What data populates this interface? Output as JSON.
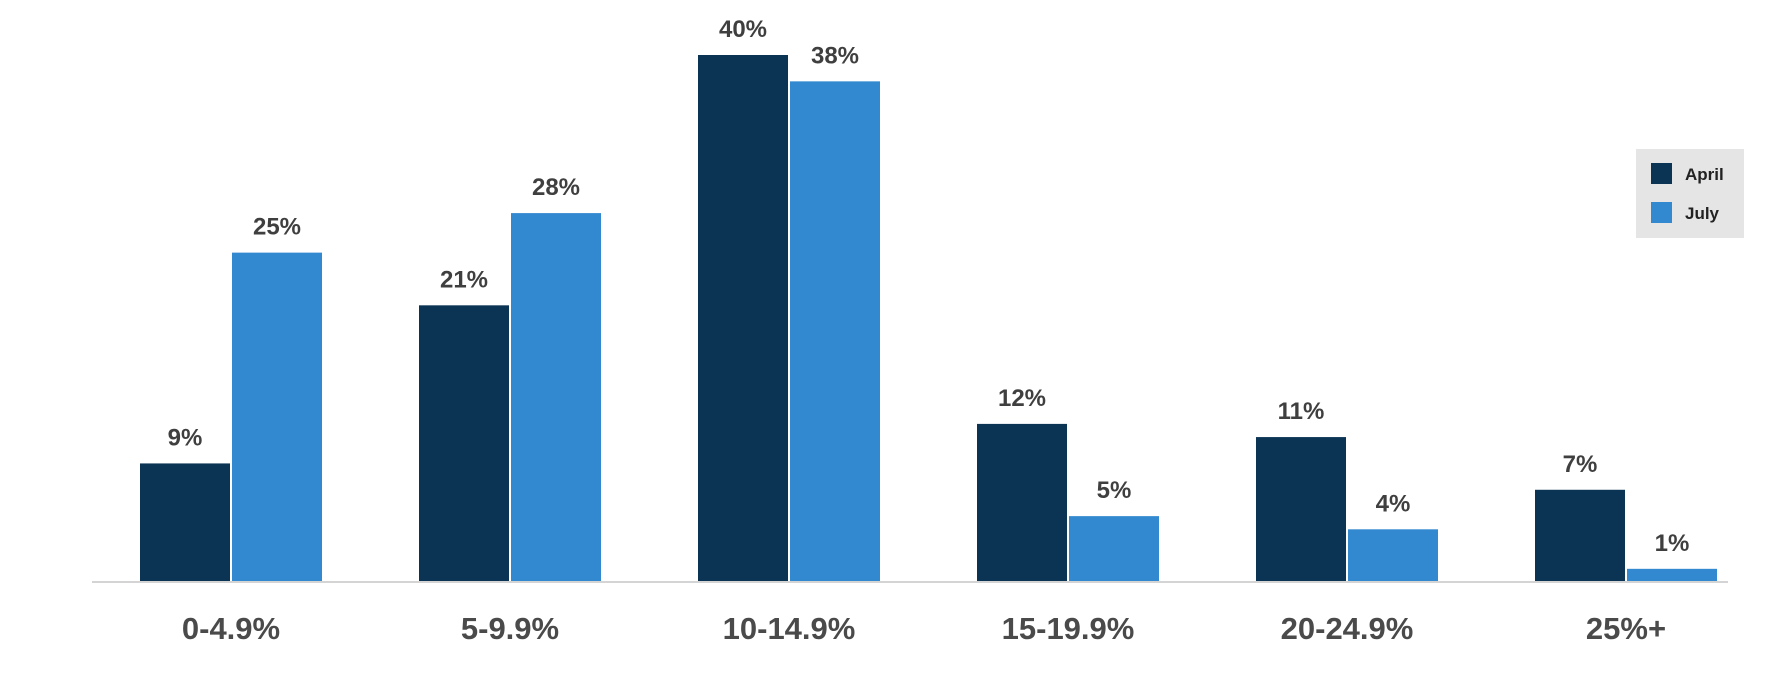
{
  "chart_data": {
    "type": "bar",
    "title": "",
    "xlabel": "",
    "ylabel": "",
    "categories": [
      "0-4.9%",
      "5-9.9%",
      "10-14.9%",
      "15-19.9%",
      "20-24.9%",
      "25%+"
    ],
    "series": [
      {
        "name": "April",
        "color": "#0a3354",
        "values": [
          9,
          21,
          40,
          12,
          11,
          7
        ],
        "labels": [
          "9%",
          "21%",
          "40%",
          "12%",
          "11%",
          "7%"
        ]
      },
      {
        "name": "July",
        "color": "#3289cf",
        "values": [
          25,
          28,
          38,
          5,
          4,
          1
        ],
        "labels": [
          "25%",
          "28%",
          "38%",
          "5%",
          "4%",
          "1%"
        ]
      }
    ],
    "ylim": [
      0,
      40
    ],
    "grid": false,
    "legend": {
      "position": "top-right",
      "background": "#e5e5e5",
      "entries": [
        "April",
        "July"
      ]
    },
    "axis_color": "#d4d4d4"
  }
}
